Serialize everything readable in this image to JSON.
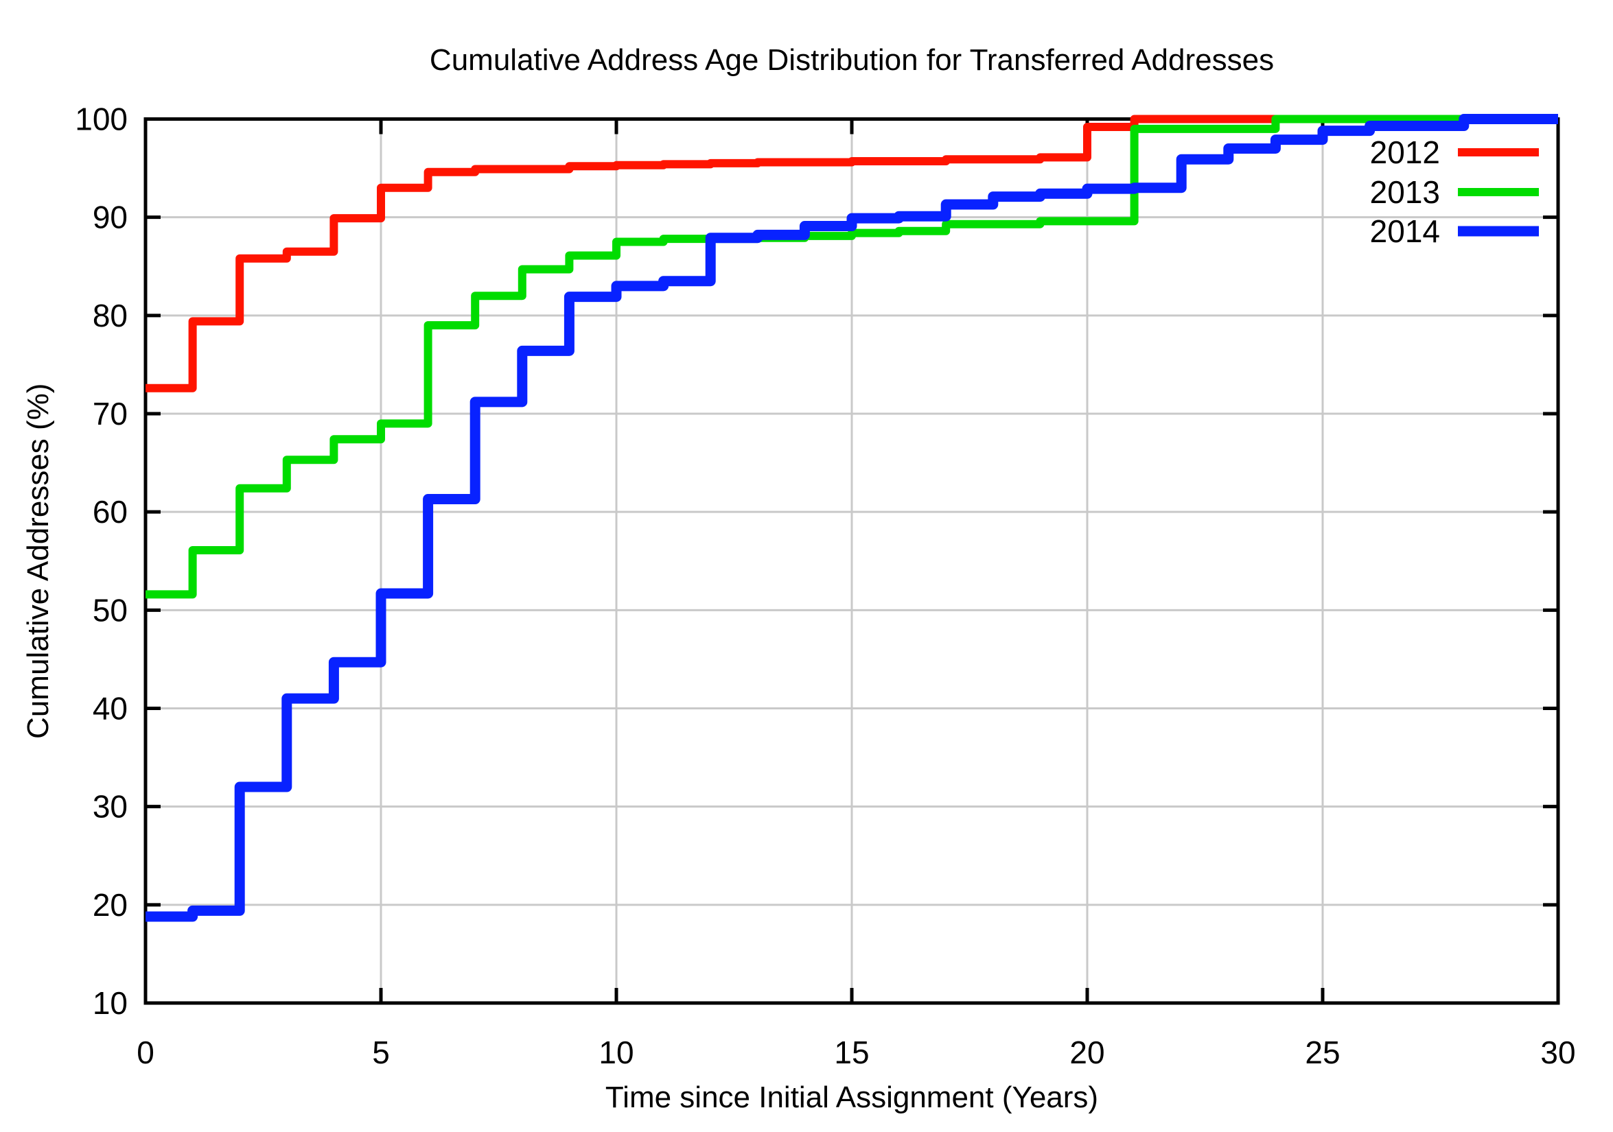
{
  "chart_data": {
    "type": "line",
    "line_style": "step-post",
    "title": "Cumulative Address Age Distribution for Transferred Addresses",
    "xlabel": "Time since Initial Assignment (Years)",
    "ylabel": "Cumulative Addresses (%)",
    "xlim": [
      0,
      30
    ],
    "ylim": [
      10,
      100
    ],
    "xticks": [
      0,
      5,
      10,
      15,
      20,
      25,
      30
    ],
    "yticks": [
      10,
      20,
      30,
      40,
      50,
      60,
      70,
      80,
      90,
      100
    ],
    "grid": true,
    "background_color": "#ffffff",
    "grid_color": "#c9c9c9",
    "border_color": "#000000",
    "legend_position": "top-right-inside",
    "x": [
      0,
      1,
      2,
      3,
      4,
      5,
      6,
      7,
      8,
      9,
      10,
      11,
      12,
      13,
      14,
      15,
      16,
      17,
      18,
      19,
      20,
      21,
      22,
      23,
      24,
      25,
      26,
      27,
      28,
      29,
      30
    ],
    "series": [
      {
        "name": "2012",
        "color": "#ff1400",
        "linewidth": 12,
        "values": [
          72.6,
          79.4,
          85.8,
          86.5,
          89.9,
          93.0,
          94.6,
          94.9,
          94.9,
          95.2,
          95.3,
          95.4,
          95.5,
          95.6,
          95.6,
          95.7,
          95.7,
          95.9,
          95.9,
          96.1,
          99.2,
          100,
          100,
          100,
          100,
          100,
          100,
          100,
          100,
          100,
          100
        ]
      },
      {
        "name": "2013",
        "color": "#00dc00",
        "linewidth": 12,
        "values": [
          51.6,
          56.1,
          62.4,
          65.3,
          67.4,
          69.0,
          79.0,
          82.0,
          84.7,
          86.1,
          87.5,
          87.8,
          87.8,
          87.9,
          88.1,
          88.4,
          88.6,
          89.3,
          89.3,
          89.6,
          89.6,
          99.0,
          99.0,
          99.0,
          100,
          100,
          100,
          100,
          100,
          100,
          100
        ]
      },
      {
        "name": "2014",
        "color": "#0822ff",
        "linewidth": 15,
        "values": [
          18.8,
          19.4,
          32.0,
          41.0,
          44.7,
          51.7,
          61.3,
          71.2,
          76.4,
          81.9,
          83.0,
          83.5,
          87.9,
          88.2,
          89.1,
          89.9,
          90.1,
          91.3,
          92.1,
          92.4,
          92.9,
          93.0,
          95.9,
          97.0,
          97.9,
          98.8,
          99.3,
          99.3,
          100,
          100,
          100
        ]
      }
    ]
  }
}
